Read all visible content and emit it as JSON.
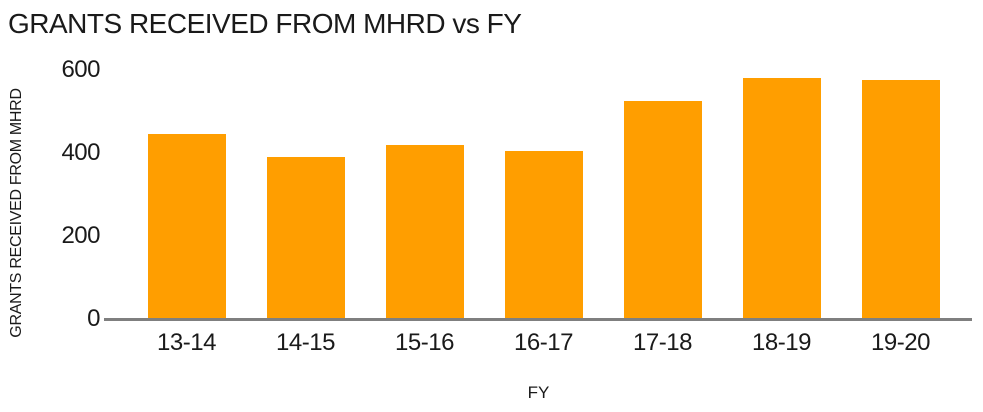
{
  "colors": {
    "bar": "#FF9E00",
    "axis_line": "#7F7F7F",
    "text": "#1A1A1A",
    "background": "#FFFFFF"
  },
  "chart_data": {
    "type": "bar",
    "title": "GRANTS RECEIVED FROM MHRD vs FY",
    "xlabel": "FY",
    "ylabel": "GRANTS RECEIVED FROM MHRD",
    "categories": [
      "13-14",
      "14-15",
      "15-16",
      "16-17",
      "17-18",
      "18-19",
      "19-20"
    ],
    "values": [
      445,
      390,
      419,
      405,
      525,
      580,
      575
    ],
    "ylim": [
      0,
      600
    ],
    "yticks": [
      0,
      200,
      400,
      600
    ],
    "grid": false,
    "legend": false,
    "bar_color": "#FF9E00"
  }
}
